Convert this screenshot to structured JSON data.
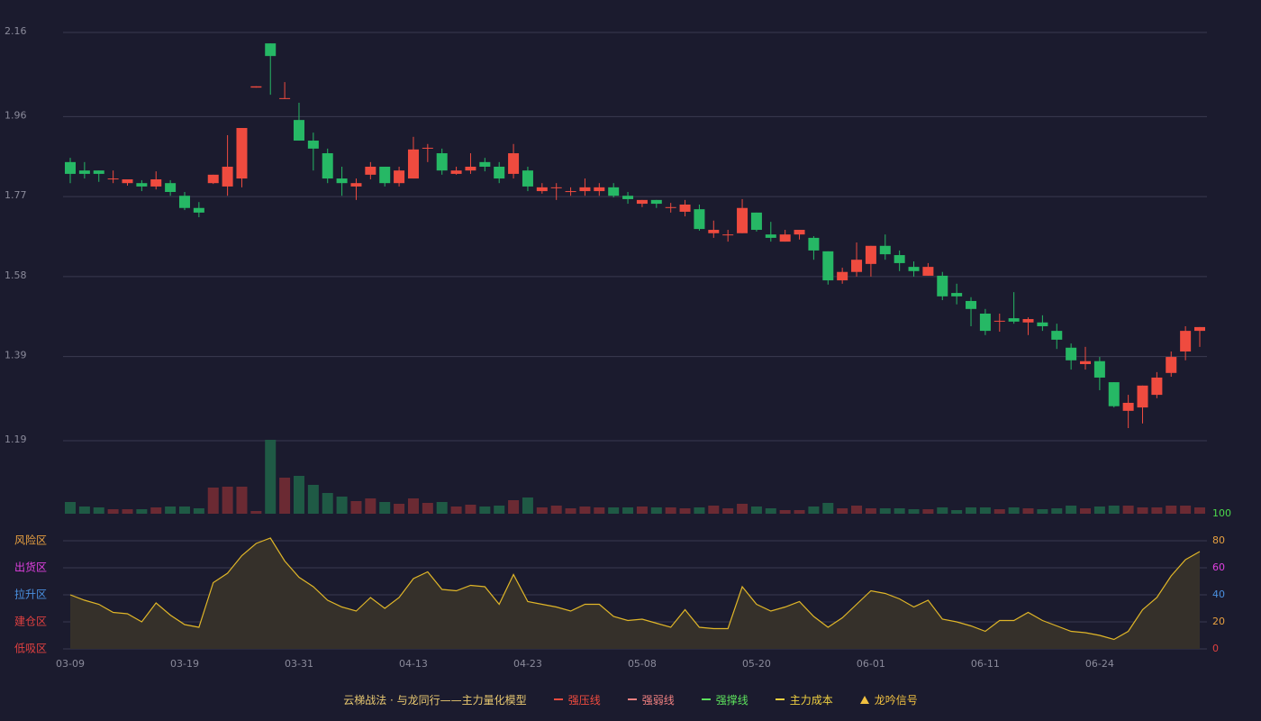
{
  "chart_data": [
    {
      "type": "candlestick",
      "categories": [
        "03-09",
        null,
        null,
        null,
        null,
        null,
        null,
        null,
        "03-19",
        null,
        null,
        null,
        null,
        null,
        null,
        null,
        "03-31",
        null,
        null,
        null,
        null,
        null,
        null,
        null,
        "04-13",
        null,
        null,
        null,
        null,
        null,
        null,
        null,
        "04-23",
        null,
        null,
        null,
        null,
        null,
        null,
        null,
        "05-08",
        null,
        null,
        null,
        null,
        null,
        null,
        null,
        "05-20",
        null,
        null,
        null,
        null,
        null,
        null,
        null,
        "06-01",
        null,
        null,
        null,
        null,
        null,
        null,
        null,
        "06-11",
        null,
        null,
        null,
        null,
        null,
        null,
        null,
        "06-24",
        null,
        null,
        null,
        null,
        null,
        null,
        null
      ],
      "open": [
        1.852,
        1.832,
        1.832,
        1.811,
        1.802,
        1.802,
        1.794,
        1.802,
        1.772,
        1.743,
        1.802,
        1.794,
        1.813,
        2.029,
        2.134,
        2.002,
        1.952,
        1.903,
        1.873,
        1.813,
        1.794,
        1.822,
        1.841,
        1.802,
        1.813,
        1.884,
        1.873,
        1.824,
        1.832,
        1.852,
        1.841,
        1.824,
        1.832,
        1.783,
        1.79,
        1.781,
        1.783,
        1.783,
        1.792,
        1.772,
        1.753,
        1.762,
        1.743,
        1.734,
        1.74,
        1.683,
        1.678,
        1.683,
        1.732,
        1.68,
        1.663,
        1.68,
        1.672,
        1.64,
        1.571,
        1.591,
        1.61,
        1.653,
        1.631,
        1.603,
        1.582,
        1.582,
        1.541,
        1.522,
        1.492,
        1.473,
        1.481,
        1.471,
        1.471,
        1.451,
        1.411,
        1.372,
        1.379,
        1.329,
        1.261,
        1.269,
        1.299,
        1.351,
        1.402,
        1.451
      ],
      "high": [
        1.862,
        1.852,
        1.832,
        1.832,
        1.811,
        1.809,
        1.83,
        1.809,
        1.781,
        1.757,
        1.822,
        1.916,
        1.933,
        2.032,
        2.134,
        2.042,
        1.993,
        1.922,
        1.884,
        1.841,
        1.813,
        1.852,
        1.841,
        1.841,
        1.912,
        1.895,
        1.884,
        1.841,
        1.873,
        1.862,
        1.852,
        1.895,
        1.841,
        1.802,
        1.802,
        1.792,
        1.813,
        1.802,
        1.802,
        1.781,
        1.762,
        1.762,
        1.755,
        1.762,
        1.751,
        1.713,
        1.691,
        1.764,
        1.732,
        1.71,
        1.691,
        1.691,
        1.676,
        1.64,
        1.601,
        1.661,
        1.653,
        1.68,
        1.642,
        1.616,
        1.612,
        1.591,
        1.563,
        1.531,
        1.503,
        1.492,
        1.543,
        1.483,
        1.488,
        1.468,
        1.421,
        1.413,
        1.389,
        1.329,
        1.299,
        1.321,
        1.353,
        1.402,
        1.462,
        1.46
      ],
      "low": [
        1.802,
        1.813,
        1.805,
        1.802,
        1.796,
        1.783,
        1.787,
        1.772,
        1.738,
        1.721,
        1.8,
        1.772,
        1.792,
        2.029,
        2.012,
        2.002,
        1.903,
        1.832,
        1.802,
        1.772,
        1.762,
        1.811,
        1.794,
        1.794,
        1.813,
        1.852,
        1.822,
        1.822,
        1.824,
        1.83,
        1.802,
        1.813,
        1.783,
        1.777,
        1.762,
        1.772,
        1.772,
        1.772,
        1.768,
        1.753,
        1.745,
        1.743,
        1.732,
        1.723,
        1.689,
        1.672,
        1.663,
        1.683,
        1.687,
        1.663,
        1.663,
        1.668,
        1.62,
        1.561,
        1.563,
        1.58,
        1.58,
        1.62,
        1.593,
        1.58,
        1.582,
        1.524,
        1.514,
        1.462,
        1.441,
        1.449,
        1.468,
        1.441,
        1.451,
        1.408,
        1.359,
        1.359,
        1.31,
        1.269,
        1.22,
        1.231,
        1.291,
        1.342,
        1.381,
        1.413
      ],
      "close": [
        1.824,
        1.824,
        1.824,
        1.813,
        1.811,
        1.794,
        1.811,
        1.781,
        1.743,
        1.732,
        1.822,
        1.841,
        1.933,
        2.032,
        2.104,
        2.004,
        1.903,
        1.884,
        1.813,
        1.802,
        1.802,
        1.841,
        1.802,
        1.832,
        1.882,
        1.886,
        1.832,
        1.832,
        1.841,
        1.841,
        1.813,
        1.873,
        1.794,
        1.792,
        1.792,
        1.783,
        1.792,
        1.792,
        1.772,
        1.764,
        1.762,
        1.753,
        1.745,
        1.751,
        1.693,
        1.691,
        1.68,
        1.743,
        1.691,
        1.672,
        1.68,
        1.691,
        1.642,
        1.571,
        1.591,
        1.62,
        1.653,
        1.633,
        1.612,
        1.593,
        1.603,
        1.533,
        1.533,
        1.503,
        1.451,
        1.475,
        1.473,
        1.479,
        1.462,
        1.43,
        1.381,
        1.379,
        1.34,
        1.272,
        1.28,
        1.321,
        1.34,
        1.389,
        1.451,
        1.46
      ],
      "up_color": "#ef4b3f",
      "down_color": "#26b865",
      "ylim": [
        1.19,
        2.16
      ],
      "yticks": [
        2.16,
        1.96,
        1.77,
        1.58,
        1.39,
        1.19
      ],
      "grid": true
    },
    {
      "type": "bar",
      "values": [
        13,
        8,
        7,
        5,
        5,
        5,
        7,
        8,
        8,
        6,
        29,
        30,
        30,
        3,
        82,
        40,
        42,
        32,
        23,
        19,
        14,
        17,
        13,
        11,
        17,
        12,
        13,
        8,
        10,
        8,
        9,
        15,
        18,
        7,
        9,
        6,
        8,
        7,
        7,
        7,
        8,
        7,
        7,
        6,
        7,
        9,
        6,
        11,
        8,
        6,
        4,
        4,
        8,
        12,
        6,
        9,
        6,
        6,
        6,
        5,
        5,
        7,
        4,
        7,
        7,
        5,
        7,
        6,
        5,
        6,
        9,
        6,
        8,
        9,
        9,
        7,
        7,
        9,
        9,
        7
      ],
      "up_color": "#6b2a33",
      "down_color": "#1f5a45"
    },
    {
      "type": "line",
      "values": [
        40,
        36,
        33,
        27,
        26,
        20,
        34,
        25,
        18,
        16,
        49,
        56,
        69,
        78,
        82,
        65,
        53,
        46,
        36,
        31,
        28,
        38,
        30,
        38,
        52,
        57,
        44,
        43,
        47,
        46,
        33,
        55,
        35,
        33,
        31,
        28,
        33,
        33,
        24,
        21,
        22,
        19,
        16,
        29,
        16,
        15,
        15,
        46,
        33,
        28,
        31,
        35,
        24,
        16,
        23,
        33,
        43,
        41,
        37,
        31,
        36,
        22,
        20,
        17,
        13,
        21,
        21,
        27,
        21,
        17,
        13,
        12,
        10,
        7,
        13,
        29,
        38,
        54,
        66,
        72
      ],
      "color": "#e0b628",
      "fill": "#35302a",
      "ylim": [
        0,
        100
      ],
      "yticks": [
        100,
        80,
        60,
        40,
        20,
        0
      ],
      "ytick_colors": [
        "#4cd94c",
        "#e8a040",
        "#e040e0",
        "#4a90e0",
        "#e8a040",
        "#e04040"
      ],
      "zones": [
        {
          "value": 80,
          "label": "风险区",
          "color": "#e8a040"
        },
        {
          "value": 60,
          "label": "出货区",
          "color": "#e040e0"
        },
        {
          "value": 40,
          "label": "拉升区",
          "color": "#4a90e0"
        },
        {
          "value": 20,
          "label": "建仓区",
          "color": "#e04040"
        },
        {
          "value": 0,
          "label": "低吸区",
          "color": "#e04040"
        }
      ],
      "grid": true
    }
  ],
  "legend": {
    "title": "云梯战法 · 与龙同行——主力量化模型",
    "title_color": "#e8c870",
    "items": [
      {
        "name": "强压线",
        "color": "#ef4b3f",
        "style": "solid"
      },
      {
        "name": "强弱线",
        "color": "#f08080",
        "style": "dashed"
      },
      {
        "name": "强撑线",
        "color": "#5ce05c",
        "style": "solid"
      },
      {
        "name": "主力成本",
        "color": "#f0d040",
        "style": "dashed"
      },
      {
        "name": "龙吟信号",
        "color": "#f0c040",
        "style": "triangle"
      }
    ]
  }
}
